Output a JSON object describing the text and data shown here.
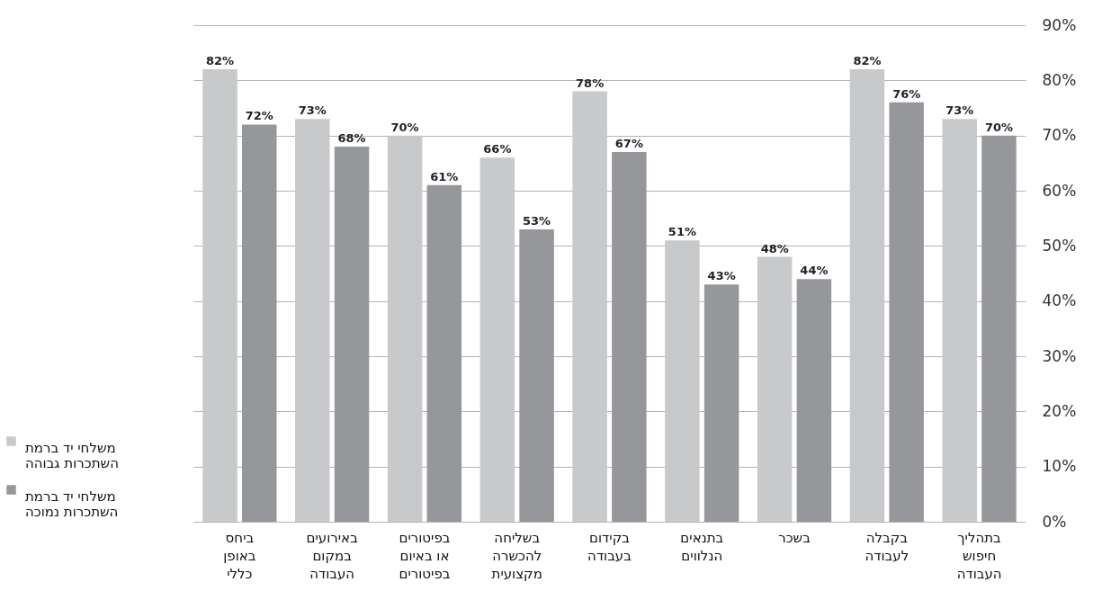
{
  "chart_data": {
    "type": "bar",
    "categories": [
      "ביחס באופן כללי",
      "באירועים במקום העבודה",
      "בפיטורים או באיום בפיטורים",
      "בשליחה להכשרה מקצועית",
      "בקידום בעבודה",
      "בתנאים הנלווים",
      "בשכר",
      "בקבלה לעבודה",
      "בתהליך חיפוש העבודה"
    ],
    "series": [
      {
        "name": "משלחי יד ברמת השתכרות גבוהה",
        "color": "#c8c9cb",
        "values": [
          82,
          73,
          70,
          66,
          78,
          51,
          48,
          82,
          73
        ],
        "value_labels": [
          "82%",
          "73%",
          "70%",
          "66%",
          "78%",
          "51%",
          "48%",
          "82%",
          "73%"
        ]
      },
      {
        "name": "משלחי יד ברמת השתכרות נמוכה",
        "color": "#96979b",
        "values": [
          72,
          68,
          61,
          53,
          67,
          43,
          44,
          76,
          70
        ],
        "value_labels": [
          "72%",
          "68%",
          "61%",
          "53%",
          "67%",
          "43%",
          "44%",
          "76%",
          "70%"
        ]
      }
    ],
    "ylim": [
      0,
      90
    ],
    "yticks": [
      {
        "value": 0,
        "label": "0%"
      },
      {
        "value": 10,
        "label": "10%"
      },
      {
        "value": 20,
        "label": "20%"
      },
      {
        "value": 30,
        "label": "30%"
      },
      {
        "value": 40,
        "label": "40%"
      },
      {
        "value": 50,
        "label": "50%"
      },
      {
        "value": 60,
        "label": "60%"
      },
      {
        "value": 70,
        "label": "70%"
      },
      {
        "value": 80,
        "label": "80%"
      },
      {
        "value": 90,
        "label": "90%"
      }
    ],
    "grid": "y",
    "legend": "left"
  }
}
